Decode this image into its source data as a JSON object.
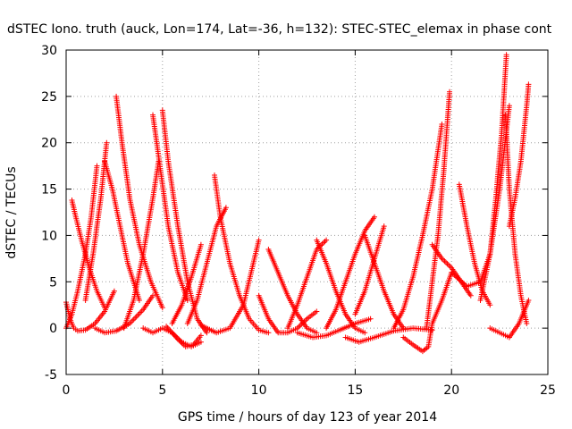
{
  "chart_data": {
    "type": "scatter",
    "title": "dSTEC Iono. truth (auck, Lon=174, Lat=-36, h=132): STEC-STEC_elemax in phase cont",
    "xlabel": "GPS time / hours of day 123 of year 2014",
    "ylabel": "dSTEC  / TECUs",
    "xlim": [
      0,
      25
    ],
    "ylim": [
      -5,
      30
    ],
    "xticks": [
      "0",
      "5",
      "10",
      "15",
      "20",
      "25"
    ],
    "yticks": [
      "-5",
      "0",
      "5",
      "10",
      "15",
      "20",
      "25",
      "30"
    ],
    "grid": true,
    "legend": "none",
    "marker": "plus",
    "color": "#ff0000",
    "series": [
      {
        "x": [
          0.0,
          0.2,
          0.4,
          0.6,
          1.0,
          1.5,
          2.0,
          2.5
        ],
        "y": [
          2.8,
          1.0,
          0.0,
          -0.3,
          -0.2,
          0.5,
          1.8,
          4.0
        ]
      },
      {
        "x": [
          0.3,
          0.5,
          0.8,
          1.2,
          1.6,
          2.0
        ],
        "y": [
          13.8,
          12.0,
          9.5,
          6.5,
          4.0,
          2.2
        ]
      },
      {
        "x": [
          0.0,
          0.3,
          0.6,
          1.0,
          1.3,
          1.6
        ],
        "y": [
          0.0,
          1.5,
          4.0,
          8.0,
          12.0,
          17.5
        ]
      },
      {
        "x": [
          1.0,
          1.4,
          1.8,
          2.1
        ],
        "y": [
          3.0,
          8.0,
          14.0,
          20.0
        ]
      },
      {
        "x": [
          2.0,
          2.4,
          2.8,
          3.2,
          3.8
        ],
        "y": [
          18.0,
          15.0,
          11.0,
          7.0,
          3.0
        ]
      },
      {
        "x": [
          2.6,
          2.9,
          3.3,
          3.8,
          4.4,
          5.0
        ],
        "y": [
          25.0,
          20.0,
          14.0,
          9.0,
          5.0,
          2.2
        ]
      },
      {
        "x": [
          1.5,
          2.0,
          2.6,
          3.3,
          4.0,
          4.5
        ],
        "y": [
          0.0,
          -0.5,
          -0.3,
          0.5,
          2.0,
          3.5
        ]
      },
      {
        "x": [
          3.0,
          3.5,
          4.0,
          4.5,
          4.8
        ],
        "y": [
          0.0,
          3.0,
          8.0,
          14.0,
          18.0
        ]
      },
      {
        "x": [
          4.5,
          4.9,
          5.3,
          5.8,
          6.3
        ],
        "y": [
          23.0,
          17.0,
          11.0,
          6.0,
          3.0
        ]
      },
      {
        "x": [
          5.0,
          5.3,
          5.8,
          6.3,
          6.8,
          7.3
        ],
        "y": [
          23.5,
          18.0,
          11.0,
          5.0,
          1.0,
          -0.5
        ]
      },
      {
        "x": [
          4.0,
          4.5,
          5.0,
          5.5,
          6.0,
          6.5,
          7.0
        ],
        "y": [
          0.0,
          -0.5,
          0.0,
          -0.5,
          -1.5,
          -2.0,
          -1.5
        ]
      },
      {
        "x": [
          5.2,
          5.8,
          6.2,
          6.6,
          7.0
        ],
        "y": [
          0.2,
          -1.2,
          -2.0,
          -1.8,
          -0.8
        ]
      },
      {
        "x": [
          5.5,
          6.0,
          6.5,
          7.0
        ],
        "y": [
          0.5,
          2.5,
          5.5,
          9.0
        ]
      },
      {
        "x": [
          6.3,
          6.8,
          7.3,
          7.8,
          8.3
        ],
        "y": [
          0.5,
          3.0,
          7.0,
          11.0,
          13.0
        ]
      },
      {
        "x": [
          7.7,
          8.0,
          8.5,
          9.0,
          9.5,
          10.0,
          10.5
        ],
        "y": [
          16.5,
          12.0,
          7.0,
          3.5,
          1.0,
          -0.2,
          -0.5
        ]
      },
      {
        "x": [
          7.0,
          7.8,
          8.5,
          9.2,
          9.6,
          10.0
        ],
        "y": [
          0.3,
          -0.5,
          0.0,
          2.5,
          6.0,
          9.5
        ]
      },
      {
        "x": [
          10.0,
          10.5,
          11.0,
          11.5,
          12.0,
          12.5,
          13.0
        ],
        "y": [
          3.5,
          1.0,
          -0.5,
          -0.5,
          0.0,
          1.0,
          1.8
        ]
      },
      {
        "x": [
          10.5,
          11.0,
          11.5,
          12.0,
          12.5,
          13.0
        ],
        "y": [
          8.5,
          6.0,
          3.5,
          1.5,
          0.0,
          -0.5
        ]
      },
      {
        "x": [
          11.5,
          12.0,
          12.5,
          13.0,
          13.5
        ],
        "y": [
          0.0,
          2.5,
          5.5,
          8.5,
          9.5
        ]
      },
      {
        "x": [
          12.0,
          12.8,
          13.5,
          14.2,
          15.0,
          15.8
        ],
        "y": [
          -0.5,
          -1.0,
          -0.8,
          -0.2,
          0.5,
          1.0
        ]
      },
      {
        "x": [
          13.0,
          13.5,
          14.0,
          14.5,
          15.0,
          15.5
        ],
        "y": [
          9.5,
          7.0,
          4.0,
          1.5,
          0.0,
          -0.5
        ]
      },
      {
        "x": [
          13.5,
          14.0,
          14.5,
          15.0,
          15.5,
          16.0
        ],
        "y": [
          0.0,
          2.0,
          5.0,
          8.0,
          10.5,
          12.0
        ]
      },
      {
        "x": [
          15.0,
          15.5,
          16.0,
          16.5
        ],
        "y": [
          1.5,
          4.0,
          7.5,
          11.0
        ]
      },
      {
        "x": [
          15.5,
          16.0,
          16.5,
          17.0,
          17.5
        ],
        "y": [
          10.0,
          7.0,
          4.0,
          1.5,
          0.0
        ]
      },
      {
        "x": [
          14.5,
          15.2,
          16.0,
          17.0,
          18.0,
          19.0
        ],
        "y": [
          -1.0,
          -1.5,
          -1.0,
          -0.3,
          0.0,
          -0.2
        ]
      },
      {
        "x": [
          17.0,
          17.5,
          18.0,
          18.5,
          19.0,
          19.5
        ],
        "y": [
          0.0,
          2.0,
          5.5,
          10.0,
          15.0,
          22.0
        ]
      },
      {
        "x": [
          17.5,
          18.0,
          18.5,
          18.8,
          19.0,
          19.5,
          20.0
        ],
        "y": [
          -1.0,
          -1.8,
          -2.5,
          -2.0,
          0.5,
          3.0,
          6.0
        ]
      },
      {
        "x": [
          18.7,
          19.0,
          19.3,
          19.6,
          19.9
        ],
        "y": [
          0.0,
          5.0,
          10.0,
          17.0,
          25.5
        ]
      },
      {
        "x": [
          19.0,
          19.5,
          20.0,
          20.5,
          21.0
        ],
        "y": [
          9.0,
          7.5,
          6.5,
          5.0,
          3.5
        ]
      },
      {
        "x": [
          20.4,
          20.8,
          21.2,
          21.6,
          22.0
        ],
        "y": [
          15.5,
          11.0,
          7.0,
          4.0,
          2.5
        ]
      },
      {
        "x": [
          20.0,
          20.8,
          21.5,
          22.0,
          22.5,
          23.0
        ],
        "y": [
          6.0,
          4.5,
          5.0,
          8.0,
          15.0,
          24.0
        ]
      },
      {
        "x": [
          21.5,
          22.0,
          22.3,
          22.6,
          22.85
        ],
        "y": [
          3.0,
          8.0,
          14.0,
          21.0,
          29.5
        ]
      },
      {
        "x": [
          22.8,
          23.0,
          23.3,
          23.6,
          23.9
        ],
        "y": [
          23.0,
          15.0,
          8.0,
          3.5,
          0.5
        ]
      },
      {
        "x": [
          22.0,
          22.5,
          23.0,
          23.5,
          24.0
        ],
        "y": [
          0.0,
          -0.5,
          -1.0,
          0.5,
          3.0
        ]
      },
      {
        "x": [
          23.0,
          23.3,
          23.6,
          23.9,
          24.0
        ],
        "y": [
          11.0,
          14.0,
          18.0,
          24.0,
          26.3
        ]
      }
    ]
  }
}
